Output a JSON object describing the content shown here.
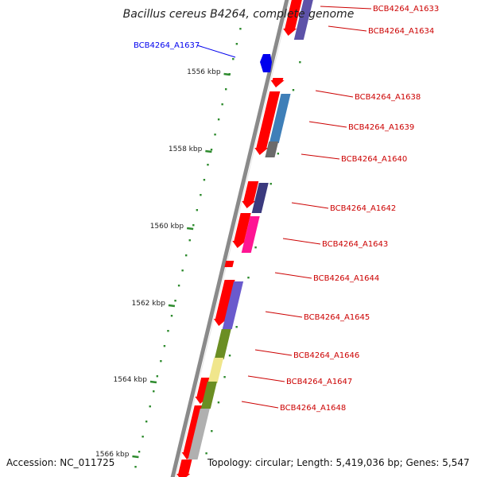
{
  "title": "Bacillus cereus B4264, complete genome",
  "footer": {
    "accession": "Accession: NC_011725",
    "summary": "Topology: circular; Length: 5,419,036 bp; Genes: 5,547"
  },
  "colors": {
    "backbone": "#8a8a8a",
    "tick": "#2e8b2e",
    "highlight": "#0000ee",
    "gene_label": "#cc0000",
    "cds": "#ff0000"
  },
  "ticks": [
    {
      "label": "1556 kbp"
    },
    {
      "label": "1558 kbp"
    },
    {
      "label": "1560 kbp"
    },
    {
      "label": "1562 kbp"
    },
    {
      "label": "1564 kbp"
    },
    {
      "label": "1566 kbp"
    }
  ],
  "genes": [
    {
      "name": "BCB4264_A1633",
      "highlight": false
    },
    {
      "name": "BCB4264_A1634",
      "highlight": false
    },
    {
      "name": "BCB4264_A1637",
      "highlight": true
    },
    {
      "name": "BCB4264_A1638",
      "highlight": false
    },
    {
      "name": "BCB4264_A1639",
      "highlight": false
    },
    {
      "name": "BCB4264_A1640",
      "highlight": false
    },
    {
      "name": "BCB4264_A1642",
      "highlight": false
    },
    {
      "name": "BCB4264_A1643",
      "highlight": false
    },
    {
      "name": "BCB4264_A1644",
      "highlight": false
    },
    {
      "name": "BCB4264_A1645",
      "highlight": false
    },
    {
      "name": "BCB4264_A1646",
      "highlight": false
    },
    {
      "name": "BCB4264_A1647",
      "highlight": false
    },
    {
      "name": "BCB4264_A1648",
      "highlight": false
    }
  ]
}
